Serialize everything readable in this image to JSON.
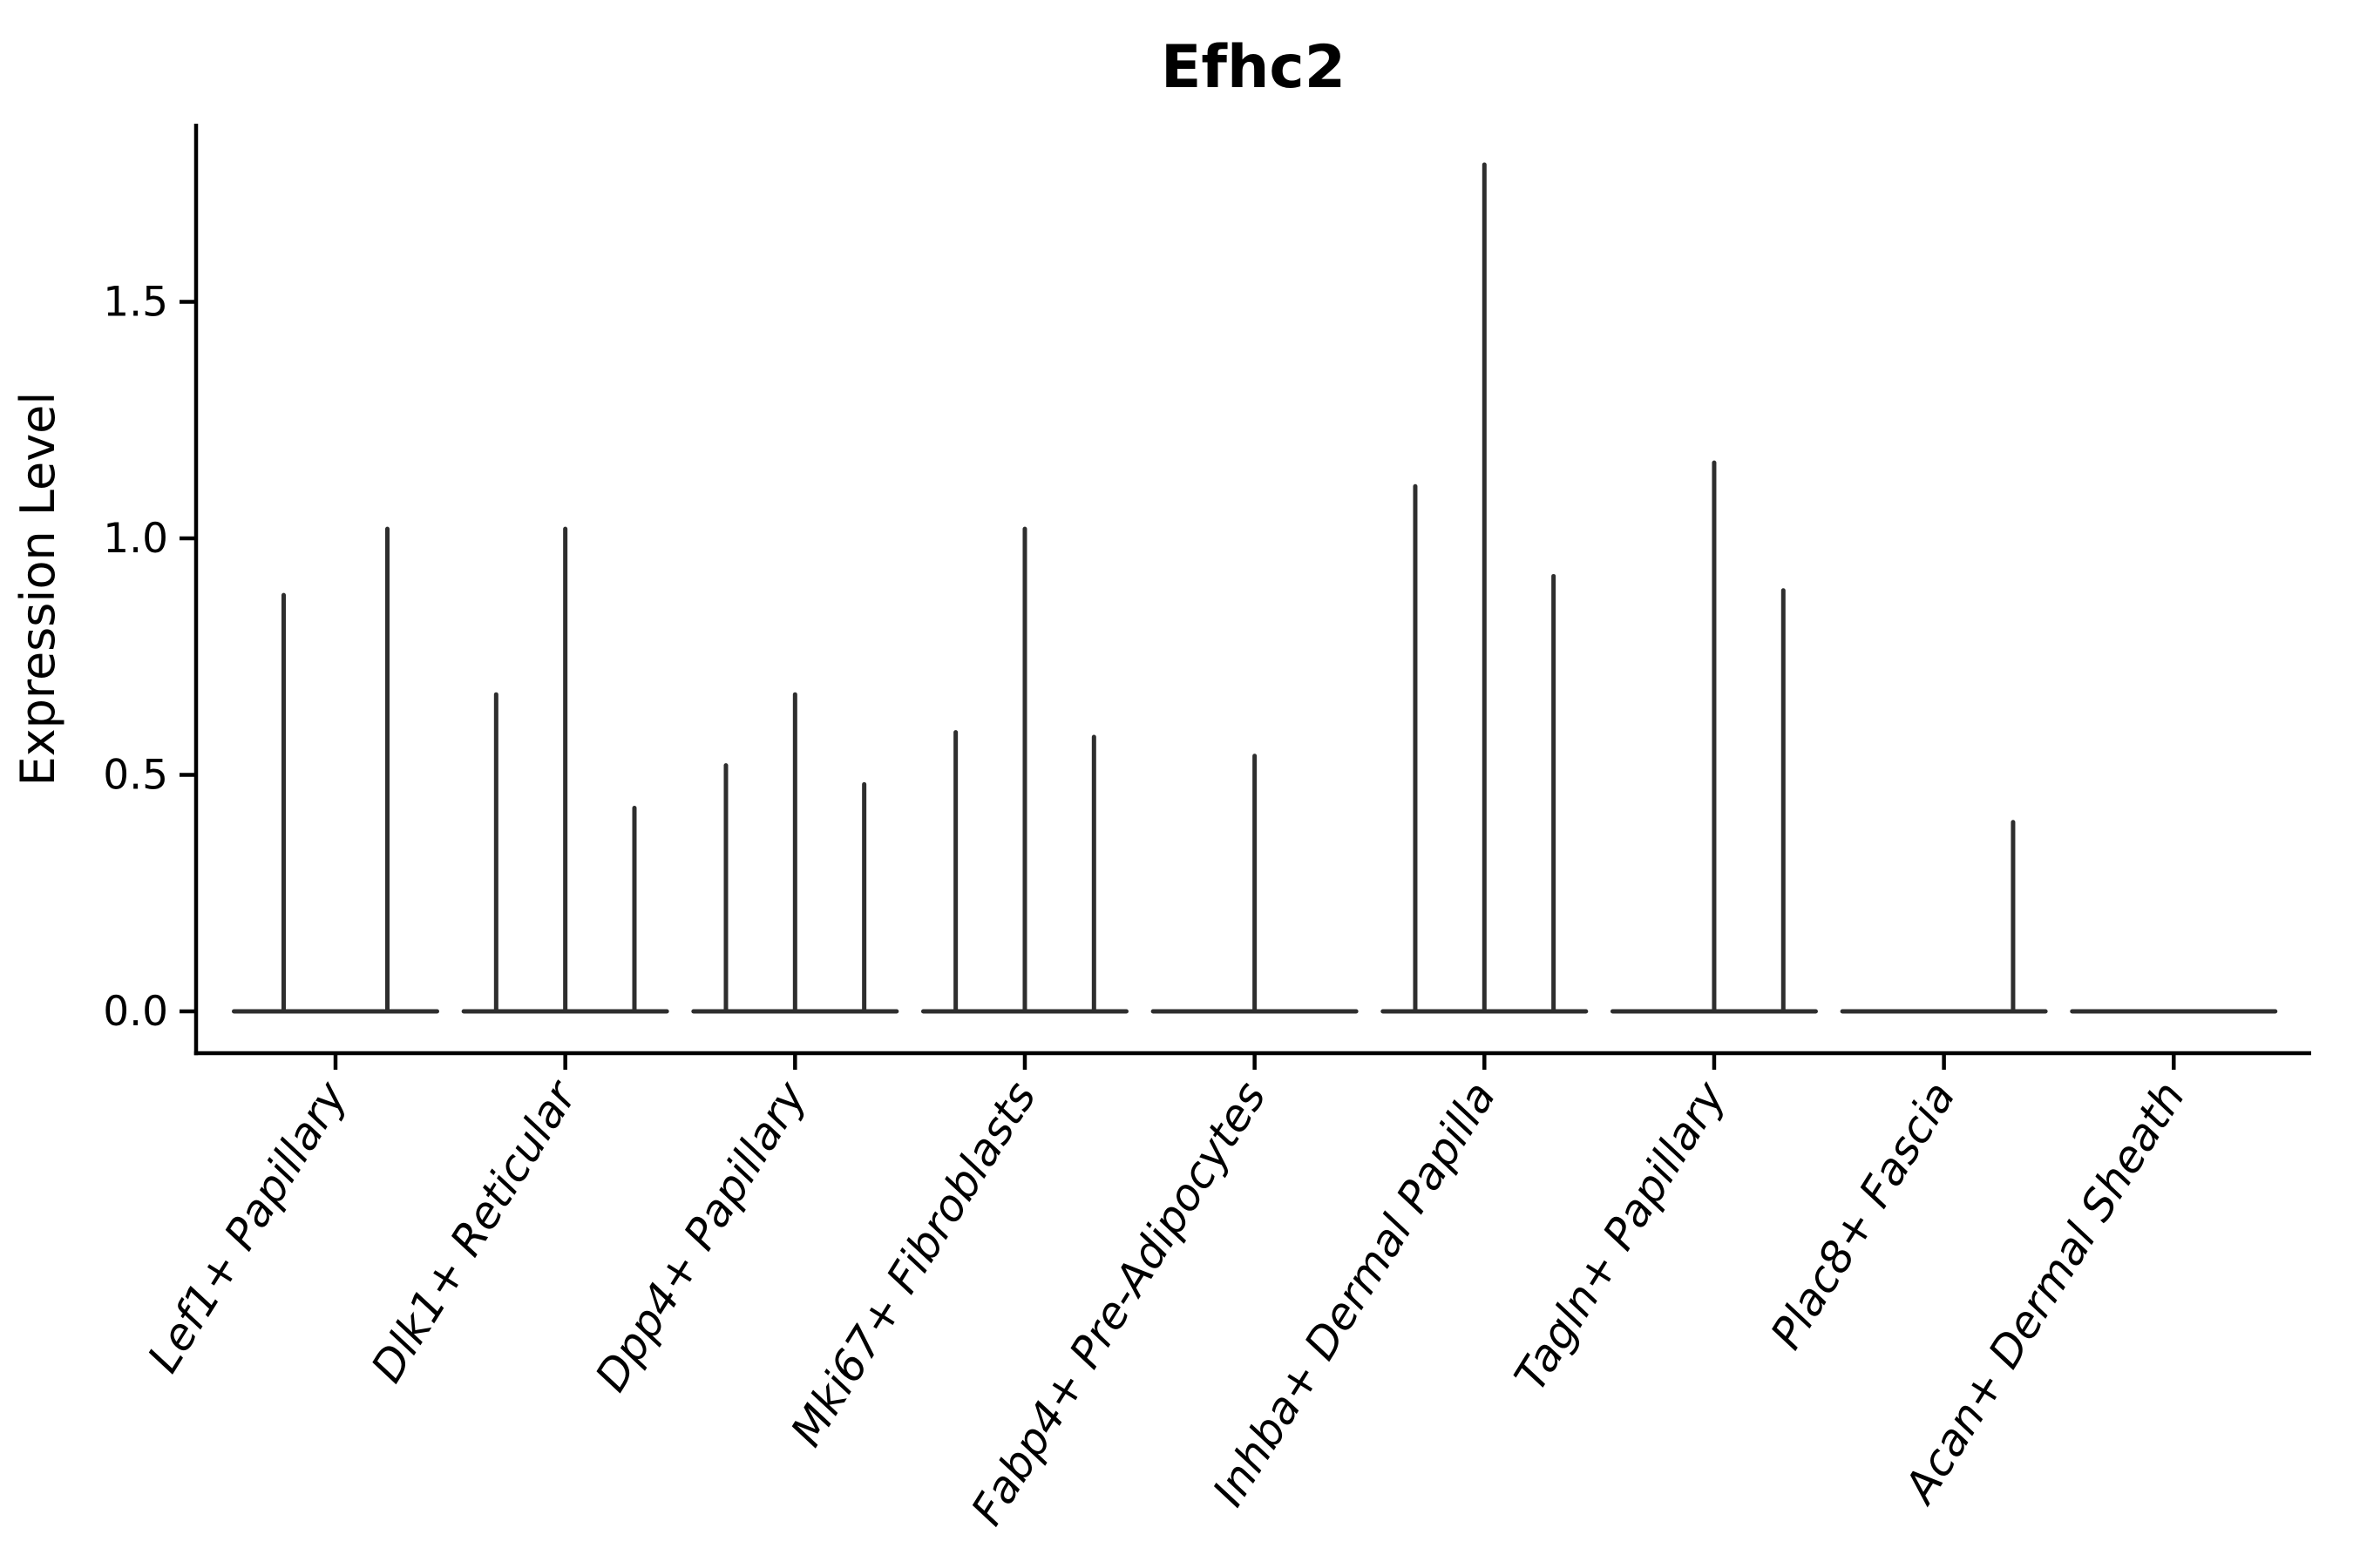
{
  "chart_data": {
    "type": "violin",
    "title": "Efhc2",
    "xlabel": "",
    "ylabel": "Expression Level",
    "y_ticks": [
      {
        "value": 0.0,
        "label": "0.0"
      },
      {
        "value": 0.5,
        "label": "0.5"
      },
      {
        "value": 1.0,
        "label": "1.0"
      },
      {
        "value": 1.5,
        "label": "1.5"
      }
    ],
    "ylim": [
      -0.09,
      1.88
    ],
    "grid": false,
    "legend": "none",
    "line_color": "#2e2e2e",
    "axis_color": "#000000",
    "categories": [
      {
        "label": "Lef1+ Papillary",
        "n_violins": 2,
        "spikes": [
          {
            "violin": 0,
            "value": 0.88
          },
          {
            "violin": 1,
            "value": 1.02
          }
        ]
      },
      {
        "label": "Dlk1+ Reticular",
        "n_violins": 3,
        "spikes": [
          {
            "violin": 0,
            "value": 0.67
          },
          {
            "violin": 1,
            "value": 1.02
          },
          {
            "violin": 2,
            "value": 0.43
          }
        ]
      },
      {
        "label": "Dpp4+ Papillary",
        "n_violins": 3,
        "spikes": [
          {
            "violin": 0,
            "value": 0.52
          },
          {
            "violin": 1,
            "value": 0.67
          },
          {
            "violin": 2,
            "value": 0.48
          }
        ]
      },
      {
        "label": "Mki67+ Fibroblasts",
        "n_violins": 3,
        "spikes": [
          {
            "violin": 0,
            "value": 0.59
          },
          {
            "violin": 1,
            "value": 1.02
          },
          {
            "violin": 2,
            "value": 0.58
          }
        ]
      },
      {
        "label": "Fabp4+ Pre-Adipocytes",
        "n_violins": 1,
        "spikes": [
          {
            "violin": 0,
            "value": 0.54
          }
        ]
      },
      {
        "label": "Inhba+ Dermal Papilla",
        "n_violins": 3,
        "spikes": [
          {
            "violin": 0,
            "value": 1.11
          },
          {
            "violin": 1,
            "value": 1.79
          },
          {
            "violin": 2,
            "value": 0.92
          }
        ]
      },
      {
        "label": "Tagln+ Papillary",
        "n_violins": 3,
        "spikes": [
          {
            "violin": 1,
            "value": 1.16
          },
          {
            "violin": 2,
            "value": 0.89
          }
        ]
      },
      {
        "label": "Plac8+ Fascia",
        "n_violins": 3,
        "spikes": [
          {
            "violin": 2,
            "value": 0.4
          }
        ]
      },
      {
        "label": "Acan+ Dermal Sheath",
        "n_violins": 1,
        "spikes": []
      }
    ]
  }
}
